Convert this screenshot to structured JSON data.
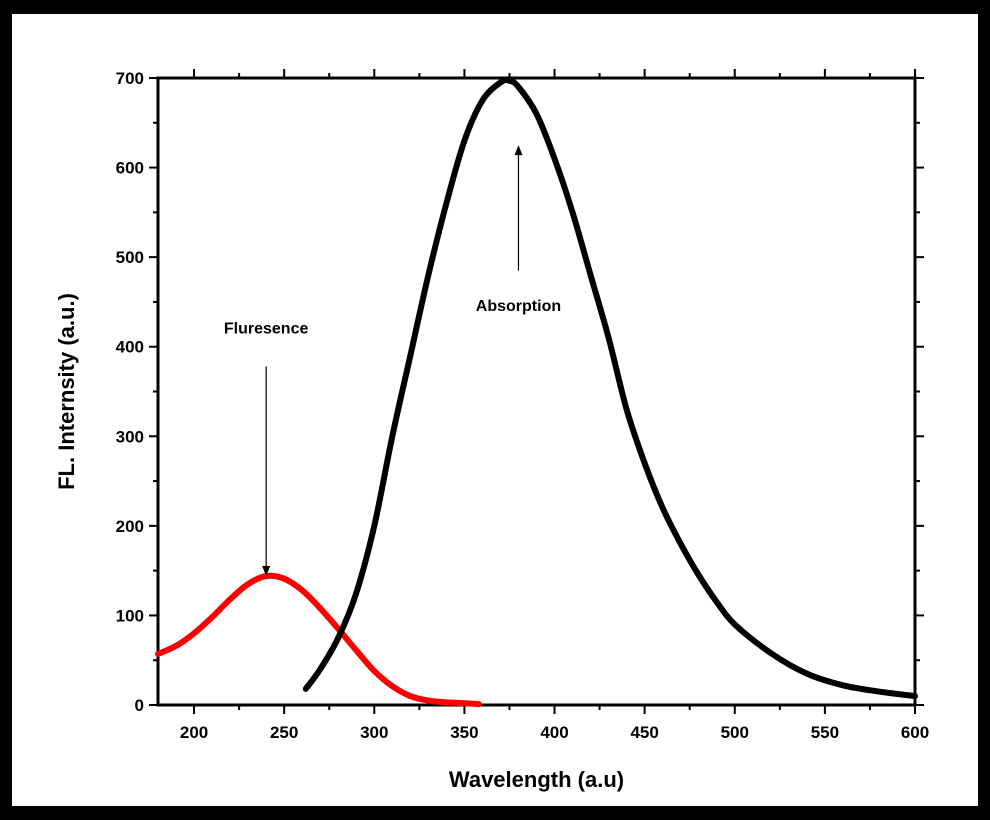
{
  "chart_data": {
    "type": "line",
    "title": "",
    "xlabel": "Wavelength (a.u)",
    "ylabel": "FL. Internsity (a.u.)",
    "xlim": [
      180,
      600
    ],
    "ylim": [
      0,
      700
    ],
    "x_ticks": [
      200,
      250,
      300,
      350,
      400,
      450,
      500,
      550,
      600
    ],
    "y_ticks": [
      0,
      100,
      200,
      300,
      400,
      500,
      600,
      700
    ],
    "grid": false,
    "legend": "none",
    "series": [
      {
        "color": "#ff0000",
        "x": [
          180,
          190,
          200,
          210,
          220,
          230,
          240,
          250,
          260,
          270,
          280,
          290,
          300,
          310,
          320,
          330,
          340,
          350,
          358
        ],
        "y": [
          57,
          66,
          80,
          98,
          118,
          135,
          144,
          141,
          128,
          108,
          85,
          61,
          38,
          21,
          10,
          5,
          3,
          2,
          1
        ]
      },
      {
        "color": "#000000",
        "x": [
          262,
          270,
          280,
          290,
          300,
          310,
          320,
          330,
          340,
          350,
          360,
          370,
          375,
          380,
          390,
          400,
          410,
          420,
          430,
          440,
          450,
          460,
          470,
          480,
          490,
          500,
          520,
          540,
          560,
          580,
          600
        ],
        "y": [
          18,
          40,
          75,
          125,
          200,
          300,
          390,
          480,
          560,
          630,
          675,
          695,
          697,
          690,
          660,
          610,
          550,
          480,
          410,
          330,
          270,
          220,
          180,
          145,
          115,
          90,
          58,
          35,
          22,
          15,
          10
        ]
      }
    ],
    "annotations": [
      {
        "text": "Fluresence",
        "label_x": 240,
        "label_y": 415,
        "arrow_from": [
          240,
          378
        ],
        "arrow_to": [
          240,
          144
        ]
      },
      {
        "text": "Absorption",
        "label_x": 380,
        "label_y": 440,
        "arrow_from": [
          380,
          485
        ],
        "arrow_to": [
          380,
          625
        ]
      }
    ]
  }
}
